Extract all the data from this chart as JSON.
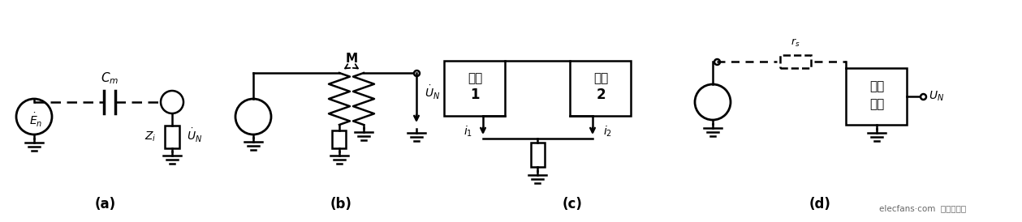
{
  "bg_color": "#ffffff",
  "label_a": "(a)",
  "label_b": "(b)",
  "label_c": "(c)",
  "label_d": "(d)",
  "fig_width": 12.59,
  "fig_height": 2.74,
  "dpi": 100,
  "watermark": "elecfans·com  电子发烧发"
}
